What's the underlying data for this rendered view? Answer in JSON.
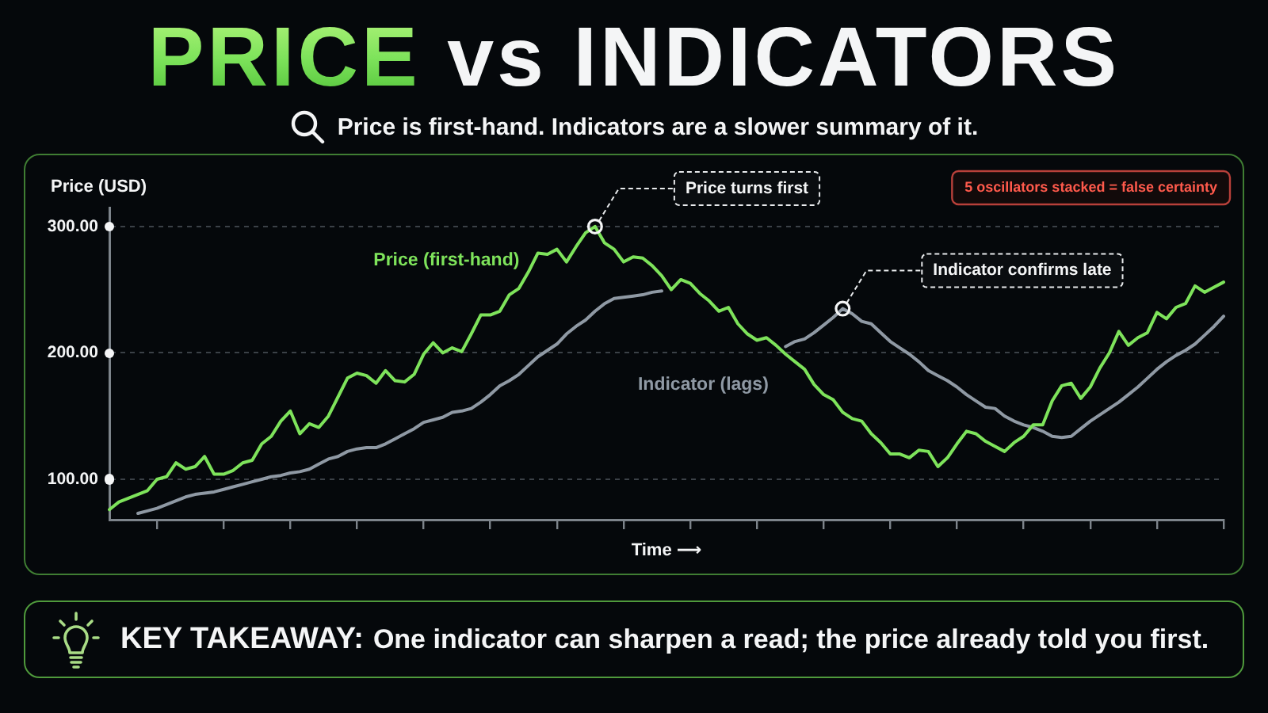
{
  "chart_data": {
    "type": "line",
    "title": "PRICE vs INDICATORS",
    "subtitle": "Price is first-hand. Indicators are a slower summary of it.",
    "xlabel": "Time ⟶",
    "ylabel": "Price (USD)",
    "categories": [
      null,
      null,
      null,
      null,
      null,
      null,
      null,
      null,
      null,
      null,
      null,
      null,
      null,
      null,
      null,
      null,
      null,
      null,
      null,
      null,
      null,
      null,
      null,
      null,
      null,
      null,
      null,
      null,
      null,
      null,
      null,
      null,
      null,
      null,
      null,
      null,
      null,
      null,
      null,
      null,
      null,
      null,
      null,
      null,
      null,
      null,
      null,
      null,
      null,
      null,
      null,
      null,
      null,
      null,
      null,
      null,
      null,
      null,
      null,
      null,
      null,
      null,
      null,
      null,
      null,
      null,
      null,
      null,
      null,
      null,
      null,
      null,
      null,
      null,
      null,
      null,
      null,
      null,
      null,
      null,
      null,
      null,
      null,
      null,
      null,
      null,
      null,
      null,
      null,
      null,
      null,
      null,
      null,
      null,
      null,
      null,
      null,
      null,
      null,
      null,
      null,
      null,
      null,
      null,
      null,
      null,
      null,
      null,
      null,
      null,
      null,
      null,
      null,
      null,
      null,
      null,
      null,
      null
    ],
    "series": [
      {
        "name": "Price (first-hand)",
        "color": "#7ee35b",
        "values": [
          76,
          82,
          85,
          88,
          91,
          100,
          102,
          113,
          108,
          110,
          118,
          104,
          104,
          107,
          113,
          115,
          128,
          134,
          146,
          154,
          136,
          144,
          141,
          150,
          165,
          180,
          184,
          182,
          176,
          186,
          178,
          177,
          183,
          199,
          208,
          200,
          204,
          201,
          215,
          230,
          230,
          233,
          246,
          251,
          264,
          279,
          278,
          282,
          272,
          284,
          295,
          300,
          287,
          282,
          272,
          276,
          275,
          269,
          261,
          250,
          258,
          255,
          247,
          241,
          233,
          236,
          223,
          215,
          210,
          212,
          206,
          199,
          193,
          187,
          175,
          167,
          163,
          153,
          148,
          146,
          136,
          129,
          120,
          120,
          117,
          123,
          122,
          110,
          117,
          128,
          138,
          136,
          130,
          126,
          122,
          129,
          134,
          143,
          143,
          162,
          174,
          176,
          164,
          173,
          188,
          200,
          217,
          206,
          212,
          216,
          232,
          227,
          236,
          239,
          253,
          248,
          252,
          256
        ]
      },
      {
        "name": "Indicator (lags)",
        "color": "#8f99a4",
        "values": [
          null,
          null,
          null,
          73,
          75,
          77,
          80,
          83,
          86,
          88,
          89,
          90,
          92,
          94,
          96,
          98,
          100,
          102,
          103,
          105,
          106,
          108,
          112,
          116,
          118,
          122,
          124,
          125,
          125,
          128,
          132,
          136,
          140,
          145,
          147,
          149,
          153,
          154,
          156,
          161,
          167,
          174,
          178,
          183,
          190,
          197,
          202,
          207,
          215,
          221,
          226,
          233,
          239,
          243,
          244,
          245,
          246,
          248,
          249,
          null,
          null,
          null,
          null,
          null,
          null,
          null,
          null,
          null,
          null,
          null,
          null,
          205,
          209,
          211,
          216,
          222,
          228,
          235,
          231,
          225,
          223,
          216,
          209,
          204,
          199,
          193,
          186,
          182,
          178,
          173,
          167,
          162,
          157,
          156,
          150,
          146,
          143,
          141,
          138,
          134,
          133,
          134,
          140,
          146,
          151,
          156,
          161,
          167,
          173,
          180,
          187,
          193,
          198,
          202,
          207,
          214,
          221,
          229
        ]
      }
    ],
    "ylim": [
      68,
      315
    ],
    "yticks": [
      {
        "value": 100,
        "label": "100.00"
      },
      {
        "value": 200,
        "label": "200.00"
      },
      {
        "value": 300,
        "label": "300.00"
      }
    ],
    "grid": "y",
    "legend": false,
    "tick_labels": "y",
    "annotations": [
      "Price turns first",
      "Indicator confirms late",
      "5 oscillators stacked = false certainty",
      "KEY TAKEAWAY: One indicator can sharpen a read; the price already told you first."
    ]
  }
}
